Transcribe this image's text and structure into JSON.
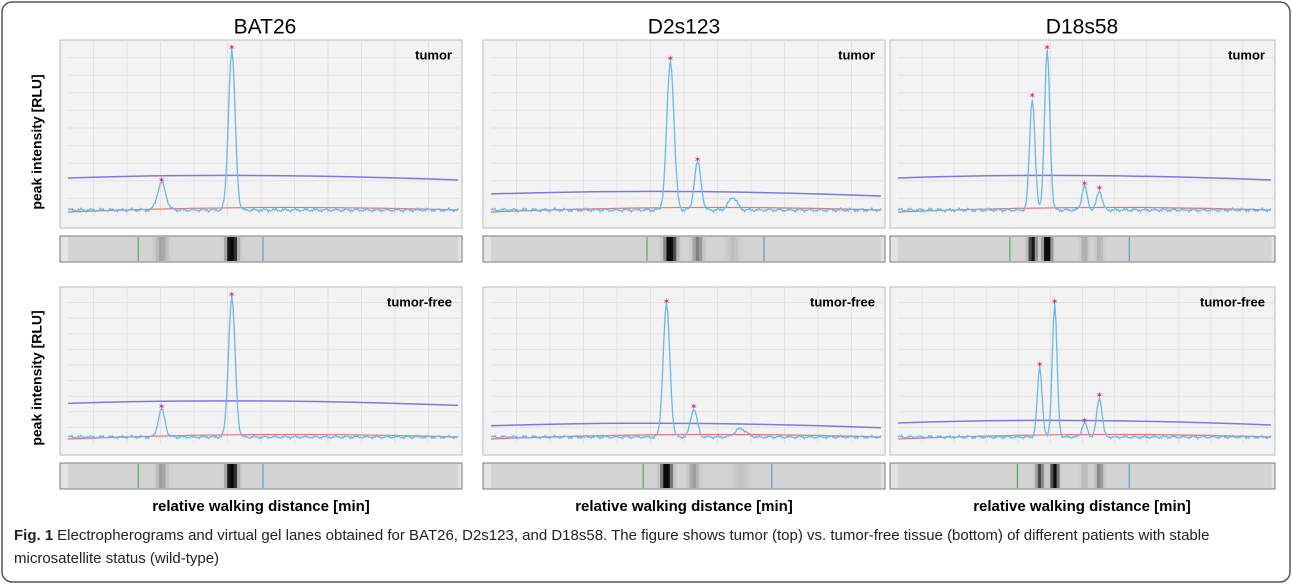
{
  "columns": [
    "BAT26",
    "D2s123",
    "D18s58"
  ],
  "rows": [
    "tumor",
    "tumor-free"
  ],
  "y_axis_label": "peak intensity [RLU]",
  "x_axis_label": "relative walking distance [min]",
  "caption": {
    "label": "Fig. 1",
    "text": "Electropherograms and virtual gel lanes obtained for BAT26, D2s123, and D18s58. The figure shows tumor (top) vs. tumor-free tissue (bottom) of different patients with stable microsatellite status (wild-type)"
  }
}
